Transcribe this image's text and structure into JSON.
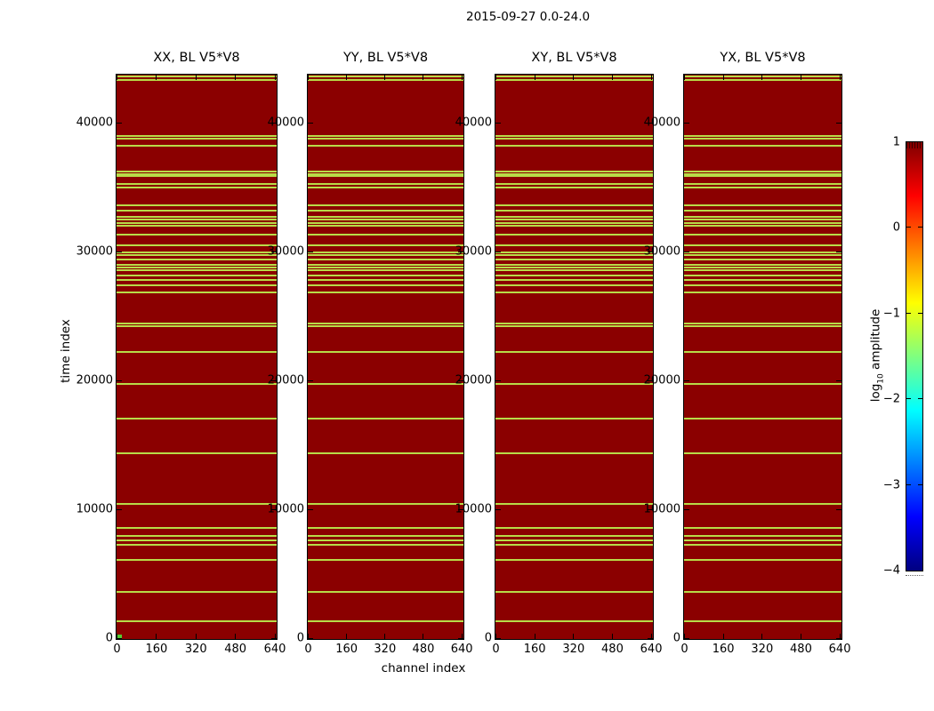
{
  "figure": {
    "suptitle": "2015-09-27 0.0-24.0",
    "xlabel": "channel index",
    "ylabel": "time index"
  },
  "panels": [
    {
      "title": "XX, BL V5*V8"
    },
    {
      "title": "YY, BL V5*V8"
    },
    {
      "title": "XY, BL V5*V8"
    },
    {
      "title": "YX, BL V5*V8"
    }
  ],
  "axes": {
    "x_ticks": [
      0,
      160,
      320,
      480,
      640
    ],
    "x_tick_labels": [
      "0",
      "160",
      "320",
      "480",
      "640"
    ],
    "y_ticks": [
      0,
      10000,
      20000,
      30000,
      40000
    ],
    "y_tick_labels": [
      "0",
      "10000",
      "20000",
      "30000",
      "40000"
    ]
  },
  "colorbar": {
    "label_prefix": "log",
    "label_sub": "10",
    "label_suffix": " amplitude",
    "tick_values": [
      1,
      0,
      -1,
      -2,
      -3,
      -4
    ],
    "tick_labels": [
      "1",
      "0",
      "−1",
      "−2",
      "−3",
      "−4"
    ],
    "value_range": [
      -4,
      1
    ]
  },
  "colors": {
    "panel_background": "#8b0000",
    "stripe": "#b8dc48",
    "origin_marker": "#55cc33",
    "axis": "#000000",
    "jet_gradient": [
      "#800000",
      "#ff0000",
      "#ffff00",
      "#00ffff",
      "#0000ff",
      "#000080"
    ]
  },
  "chart_data": {
    "type": "heatmap",
    "title": "2015-09-27 0.0-24.0",
    "xlabel": "channel index",
    "ylabel": "time index",
    "panels": [
      "XX, BL V5*V8",
      "YY, BL V5*V8",
      "XY, BL V5*V8",
      "YX, BL V5*V8"
    ],
    "x_range": [
      0,
      645
    ],
    "y_range": [
      0,
      43760
    ],
    "colormap": "jet",
    "color_scale_range": [
      -4,
      1
    ],
    "color_scale_label": "log10 amplitude",
    "background_value": 1.0,
    "stripe_value_approx": -1.2,
    "stripes_apply_to_all_panels": true,
    "stripe_rows_time_index": [
      43620,
      43380,
      39030,
      38790,
      38240,
      36270,
      36060,
      35920,
      35240,
      35000,
      33620,
      33170,
      32720,
      32500,
      32260,
      32030,
      31350,
      30540,
      29950,
      29740,
      29400,
      29020,
      28790,
      28560,
      28170,
      27850,
      27390,
      26840,
      24430,
      24200,
      22240,
      19760,
      17070,
      14330,
      10430,
      8590,
      7970,
      7620,
      7280,
      6060,
      3600,
      1300
    ],
    "origin_marker": {
      "panel": "XX, BL V5*V8",
      "channel_span": [
        0,
        15
      ],
      "time_span": [
        0,
        250
      ],
      "value_approx": -0.6
    }
  }
}
